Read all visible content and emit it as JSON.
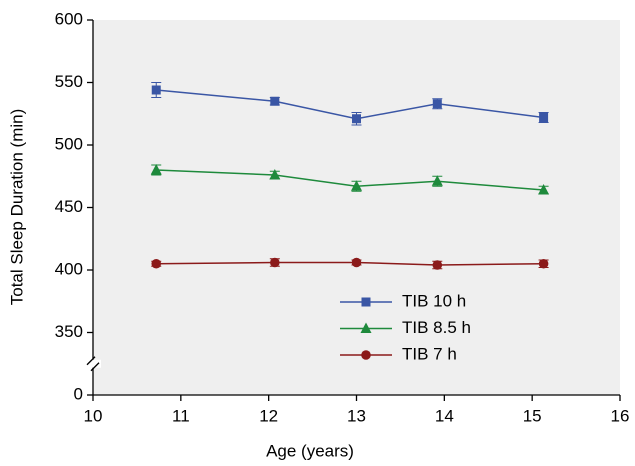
{
  "chart_data": {
    "type": "line",
    "xlabel": "Age (years)",
    "ylabel": "Total Sleep Duration (min)",
    "xlim": [
      10,
      16
    ],
    "xticks": [
      10,
      11,
      12,
      13,
      14,
      15,
      16
    ],
    "ylim": [
      0,
      600
    ],
    "yticks": [
      0,
      350,
      400,
      450,
      500,
      550,
      600
    ],
    "y_break": true,
    "x": [
      10.72,
      12.07,
      13.0,
      13.92,
      15.13
    ],
    "background": "#efefef",
    "legend": "lower center",
    "series": [
      {
        "name": "TIB 10 h",
        "color": "#3a56a5",
        "marker": "square",
        "values": [
          544,
          535,
          521,
          533,
          522
        ],
        "errors": [
          6,
          3,
          5,
          4,
          4
        ]
      },
      {
        "name": "TIB 8.5 h",
        "color": "#1e8a3c",
        "marker": "triangle",
        "values": [
          480,
          476,
          467,
          471,
          464
        ],
        "errors": [
          4,
          3,
          4,
          4,
          3
        ]
      },
      {
        "name": "TIB 7 h",
        "color": "#8b1a1a",
        "marker": "circle",
        "values": [
          405,
          406,
          406,
          404,
          405
        ],
        "errors": [
          2,
          3,
          2,
          3,
          3
        ]
      }
    ]
  }
}
